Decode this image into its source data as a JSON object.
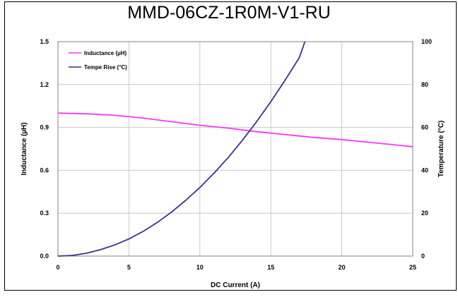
{
  "chart_data": {
    "type": "line",
    "title": "MMD-06CZ-1R0M-V1-RU",
    "xlabel": "DC Current (A)",
    "ylabel": "Inductance (µH)",
    "y2label": "Temperature (°C)",
    "xlim": [
      0,
      25
    ],
    "ylim": [
      0,
      1.5
    ],
    "y2lim": [
      0,
      100
    ],
    "x_ticks": [
      0,
      5,
      10,
      15,
      20,
      25
    ],
    "y_ticks": [
      0.0,
      0.3,
      0.6,
      0.9,
      1.2,
      1.5
    ],
    "y_tick_labels": [
      "0.0",
      "0.3",
      "0.6",
      "0.9",
      "1.2",
      "1.5"
    ],
    "y2_ticks": [
      0,
      20,
      40,
      60,
      80,
      100
    ],
    "grid": true,
    "legend_position": "top-left",
    "series": [
      {
        "name": "Inductance (µH)",
        "axis": "left",
        "color": "#ff33ff",
        "x": [
          0,
          2,
          4,
          6,
          8,
          10,
          12,
          14,
          16,
          18,
          20,
          22,
          24,
          25
        ],
        "y": [
          1.0,
          0.995,
          0.985,
          0.965,
          0.94,
          0.915,
          0.895,
          0.87,
          0.85,
          0.83,
          0.815,
          0.795,
          0.775,
          0.765
        ]
      },
      {
        "name": "Tempe Rise (°C)",
        "axis": "right",
        "color": "#3b2f8f",
        "x": [
          0,
          1,
          2,
          3,
          4,
          5,
          6,
          7,
          8,
          9,
          10,
          11,
          12,
          13,
          14,
          15,
          16,
          17,
          17.4
        ],
        "y": [
          0,
          0.3,
          1.3,
          3,
          5.2,
          8,
          11.5,
          15.7,
          20.5,
          26,
          32,
          38.7,
          46,
          54,
          62.7,
          72,
          82,
          92.5,
          100
        ]
      }
    ]
  }
}
